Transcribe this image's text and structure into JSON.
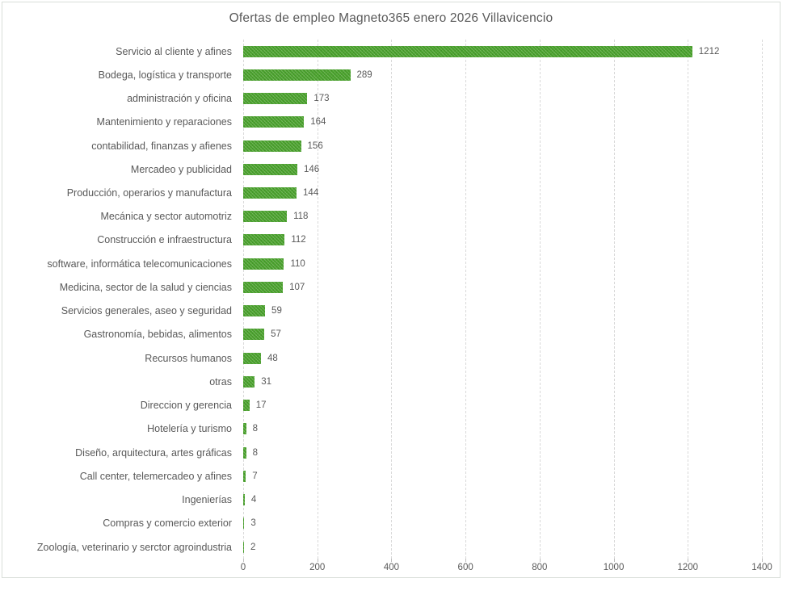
{
  "chart_data": {
    "type": "bar",
    "orientation": "horizontal",
    "title": "Ofertas de empleo Magneto365 enero 2026 Villavicencio",
    "xlabel": "",
    "ylabel": "",
    "categories": [
      "Servicio al cliente y afines",
      "Bodega, logística y transporte",
      "administración y oficina",
      "Mantenimiento y reparaciones",
      "contabilidad, finanzas y afienes",
      "Mercadeo y publicidad",
      "Producción, operarios y manufactura",
      "Mecánica y sector automotriz",
      "Construcción e infraestructura",
      "software, informática telecomunicaciones",
      "Medicina, sector de la salud y ciencias",
      "Servicios generales, aseo y seguridad",
      "Gastronomía, bebidas, alimentos",
      "Recursos humanos",
      "otras",
      "Direccion y gerencia",
      "Hotelería y turismo",
      "Diseño, arquitectura, artes gráficas",
      "Call center, telemercadeo y afines",
      "Ingenierías",
      "Compras y comercio exterior",
      "Zoología, veterinario y serctor agroindustria"
    ],
    "values": [
      1212,
      289,
      173,
      164,
      156,
      146,
      144,
      118,
      112,
      110,
      107,
      59,
      57,
      48,
      31,
      17,
      8,
      8,
      7,
      4,
      3,
      2
    ],
    "xlim": [
      0,
      1400
    ],
    "xticks": [
      0,
      200,
      400,
      600,
      800,
      1000,
      1200,
      1400
    ],
    "grid": true,
    "legend": "none",
    "data_labels": true
  },
  "colors": {
    "bar": "#4aa32c",
    "text": "#595959",
    "gridline": "#d9d9d9",
    "tick": "#bfbfbf",
    "frame_border": "#d9ded9",
    "background": "#ffffff"
  }
}
